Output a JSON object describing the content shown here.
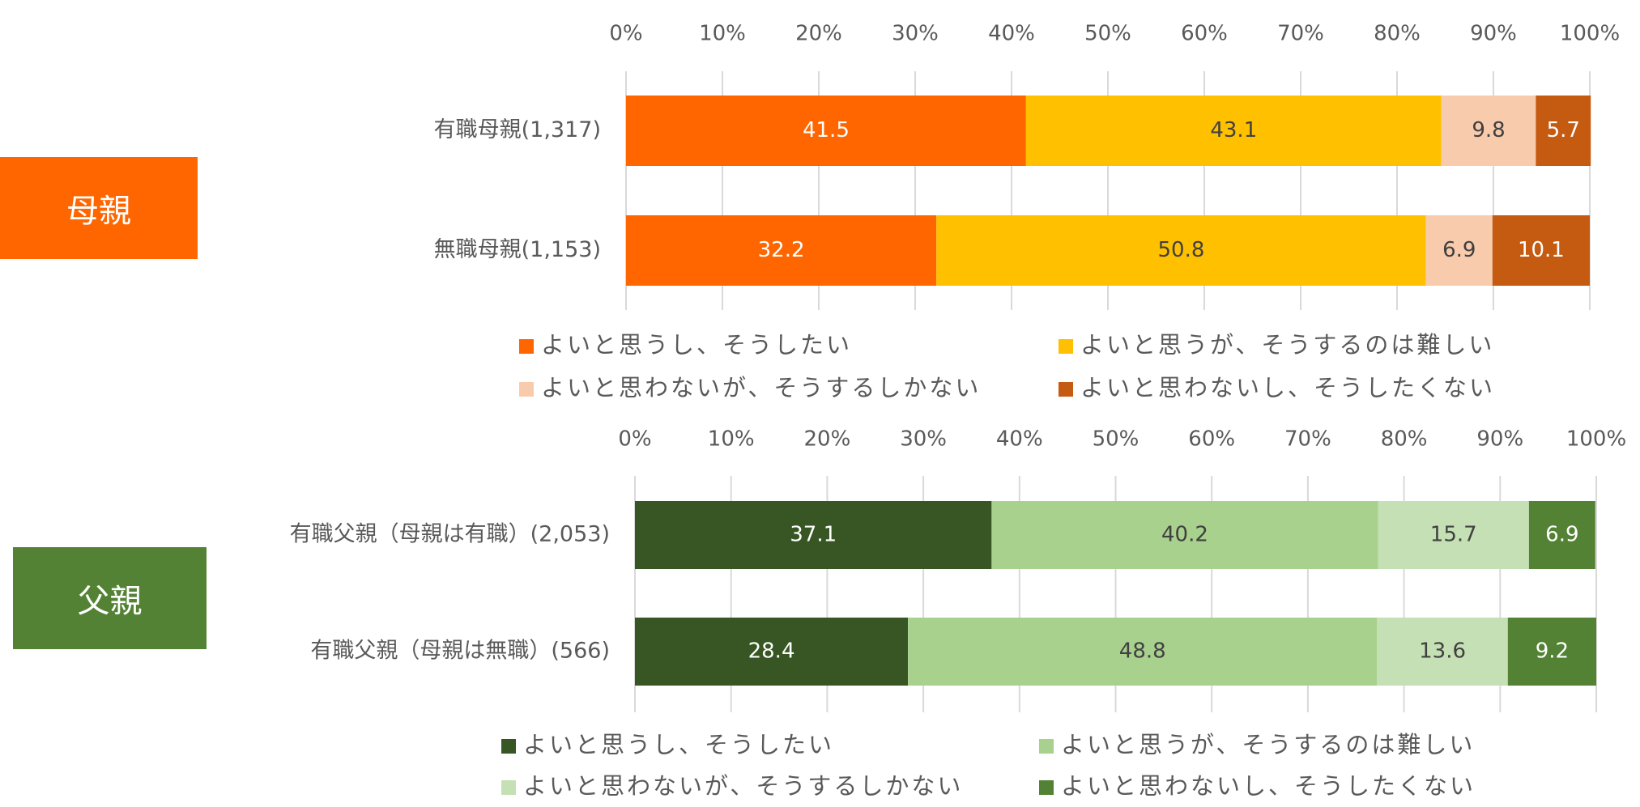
{
  "colors": {
    "mother": [
      "#FF6600",
      "#FFC000",
      "#F8CBAD",
      "#C55A11"
    ],
    "father": [
      "#375623",
      "#A9D18E",
      "#C5E0B4",
      "#548235"
    ],
    "mother_label_bg": "#FF6600",
    "father_label_bg": "#548235",
    "tick_text": "#595959",
    "category_text": "#595959",
    "gridline": "#D9D9D9"
  },
  "side_labels": {
    "mother": "母親",
    "father": "父親"
  },
  "chart_data": [
    {
      "type": "bar",
      "orientation": "horizontal",
      "stacked": "percent",
      "title": "",
      "xlabel": "",
      "ylabel": "",
      "xlim": [
        0,
        100
      ],
      "ticks": [
        "0%",
        "10%",
        "20%",
        "30%",
        "40%",
        "50%",
        "60%",
        "70%",
        "80%",
        "90%",
        "100%"
      ],
      "grid": true,
      "legend_position": "bottom",
      "categories": [
        "有職母親(1,317)",
        "無職母親(1,153)"
      ],
      "series": [
        {
          "name": "よいと思うし、そうしたい",
          "values": [
            41.5,
            32.2
          ]
        },
        {
          "name": "よいと思うが、そうするのは難しい",
          "values": [
            43.1,
            50.8
          ]
        },
        {
          "name": "よいと思わないが、そうするしかない",
          "values": [
            9.8,
            6.9
          ]
        },
        {
          "name": "よいと思わないし、そうしたくない",
          "values": [
            5.7,
            10.1
          ]
        }
      ]
    },
    {
      "type": "bar",
      "orientation": "horizontal",
      "stacked": "percent",
      "title": "",
      "xlabel": "",
      "ylabel": "",
      "xlim": [
        0,
        100
      ],
      "ticks": [
        "0%",
        "10%",
        "20%",
        "30%",
        "40%",
        "50%",
        "60%",
        "70%",
        "80%",
        "90%",
        "100%"
      ],
      "grid": true,
      "legend_position": "bottom",
      "categories": [
        "有職父親（母親は有職）(2,053)",
        "有職父親（母親は無職）(566)"
      ],
      "series": [
        {
          "name": "よいと思うし、そうしたい",
          "values": [
            37.1,
            28.4
          ]
        },
        {
          "name": "よいと思うが、そうするのは難しい",
          "values": [
            40.2,
            48.8
          ]
        },
        {
          "name": "よいと思わないが、そうするしかない",
          "values": [
            15.7,
            13.6
          ]
        },
        {
          "name": "よいと思わないし、そうしたくない",
          "values": [
            6.9,
            9.2
          ]
        }
      ]
    }
  ]
}
